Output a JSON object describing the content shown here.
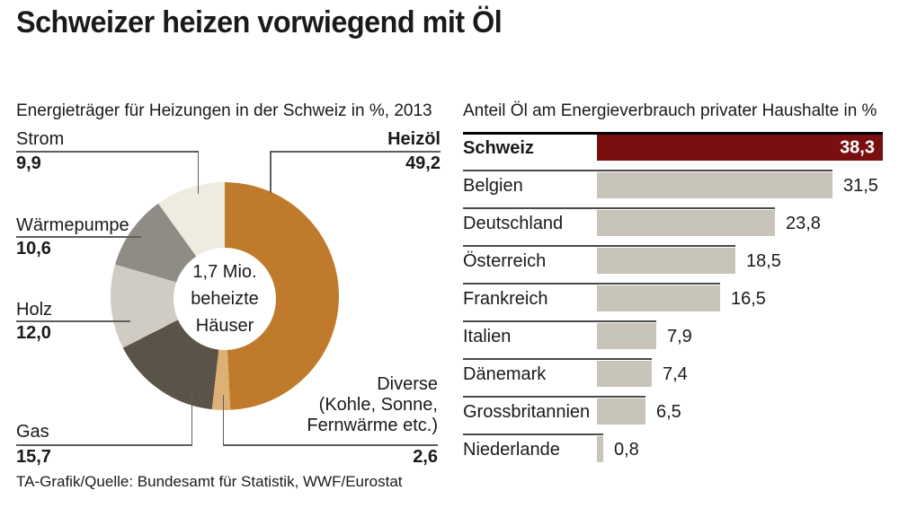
{
  "title": "Schweizer heizen vorwiegend mit Öl",
  "footer": "TA-Grafik/Quelle: Bundesamt für Statistik, WWF/Eurostat",
  "chart_data": [
    {
      "type": "pie",
      "subtype": "donut",
      "title": "Energieträger für Heizungen in der Schweiz in %, 2013",
      "center_label": "1,7 Mio. beheizte Häuser",
      "center_lines": [
        "1,7 Mio.",
        "beheizte",
        "Häuser"
      ],
      "start_angle_deg": 0,
      "direction": "clockwise",
      "segments": [
        {
          "label": "Heizöl",
          "value": 49.2,
          "display": "49,2",
          "color": "#c07a2b"
        },
        {
          "label": "Diverse (Kohle, Sonne, Fernwärme etc.)",
          "label_lines": [
            "Diverse",
            "(Kohle, Sonne,",
            "Fernwärme etc.)"
          ],
          "value": 2.6,
          "display": "2,6",
          "color": "#ddb176"
        },
        {
          "label": "Gas",
          "value": 15.7,
          "display": "15,7",
          "color": "#5a5347"
        },
        {
          "label": "Holz",
          "value": 12.0,
          "display": "12,0",
          "color": "#d1ccc3"
        },
        {
          "label": "Wärmepumpe",
          "value": 10.6,
          "display": "10,6",
          "color": "#8f8c86"
        },
        {
          "label": "Strom",
          "value": 9.9,
          "display": "9,9",
          "color": "#f0ebe0"
        }
      ]
    },
    {
      "type": "bar",
      "orientation": "horizontal",
      "title": "Anteil Öl am Energieverbrauch privater Haushalte in %",
      "categories": [
        "Schweiz",
        "Belgien",
        "Deutschland",
        "Österreich",
        "Frankreich",
        "Italien",
        "Dänemark",
        "Grossbritannien",
        "Niederlande"
      ],
      "values": [
        38.3,
        31.5,
        23.8,
        18.5,
        16.5,
        7.9,
        7.4,
        6.5,
        0.8
      ],
      "displays": [
        "38,3",
        "31,5",
        "23,8",
        "18,5",
        "16,5",
        "7,9",
        "7,4",
        "6,5",
        "0,8"
      ],
      "bar_color": "#c9c4ba",
      "highlight_color": "#7a0f12",
      "highlight_index": 0,
      "xlim": [
        0,
        40
      ],
      "grid": false,
      "value_labels": "end-of-bar"
    }
  ]
}
